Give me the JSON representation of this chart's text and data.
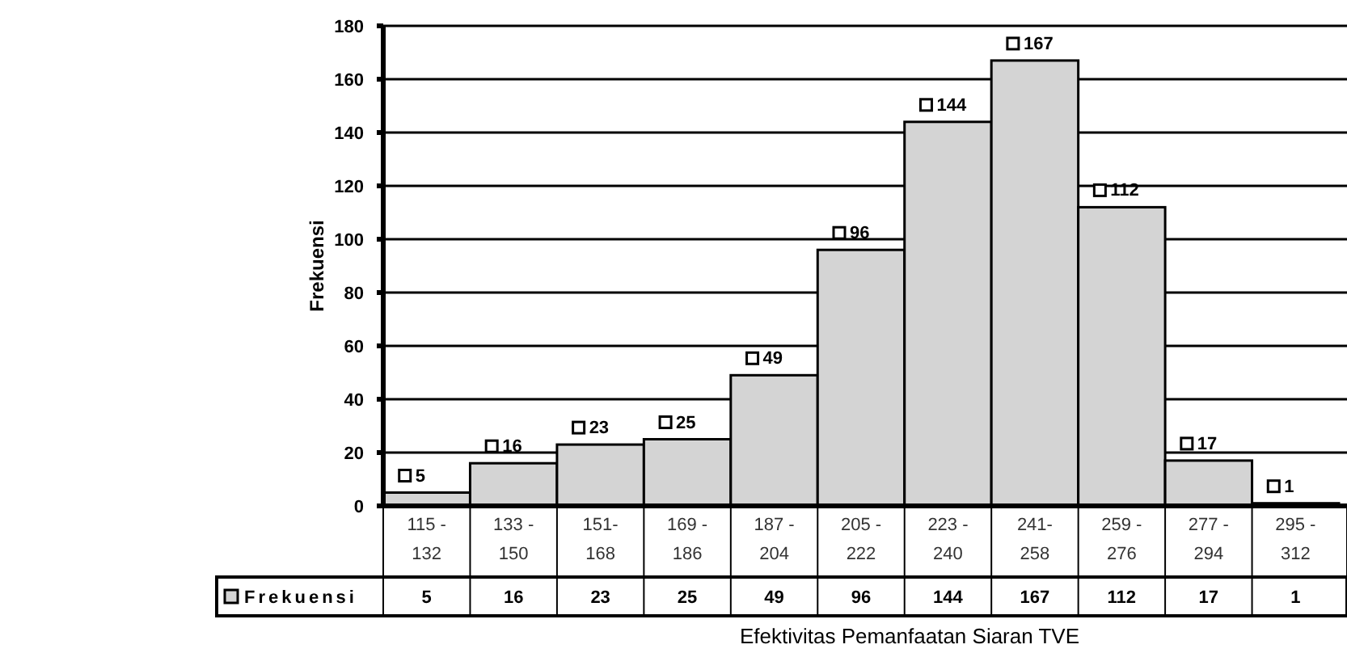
{
  "chart_data": {
    "type": "bar",
    "xlabel": "Efektivitas Pemanfaatan Siaran TVE",
    "ylabel": "Frekuensi",
    "categories": [
      "115 - 132",
      "133 - 150",
      "151- 168",
      "169 - 186",
      "187 - 204",
      "205 - 222",
      "223 - 240",
      "241- 258",
      "259 - 276",
      "277 - 294",
      "295 - 312"
    ],
    "series": [
      {
        "name": "Frekuensi",
        "color": "#d4d4d4",
        "values": [
          5,
          16,
          23,
          25,
          49,
          96,
          144,
          167,
          112,
          17,
          1
        ]
      }
    ],
    "ylim": [
      0,
      180
    ],
    "yticks": [
      0,
      20,
      40,
      60,
      80,
      100,
      120,
      140,
      160,
      180
    ],
    "grid": "y",
    "legend": "bottom",
    "data_labels": true,
    "annotations": [
      "5",
      "16",
      "23",
      "25",
      "49",
      "96",
      "144",
      "167",
      "112",
      "17",
      "1"
    ]
  }
}
